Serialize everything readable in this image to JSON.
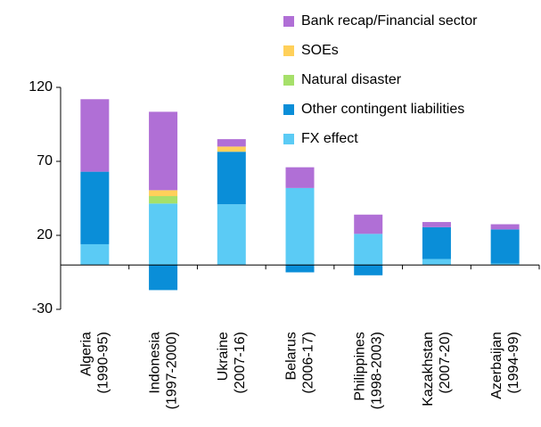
{
  "chart_data": {
    "type": "stacked-bar",
    "categories": [
      [
        "Algeria",
        "(1990-95)"
      ],
      [
        "Indonesia",
        "(1997-2000)"
      ],
      [
        "Ukraine",
        "(2007-16)"
      ],
      [
        "Belarus",
        "(2006-17)"
      ],
      [
        "Philippines",
        "(1998-2003)"
      ],
      [
        "Kazakhstan",
        "(2007-20)"
      ],
      [
        "Azerbaijan",
        "(1994-99)"
      ]
    ],
    "series": [
      {
        "name": "FX effect",
        "color": "#5bcbf5",
        "values": [
          14,
          41.5,
          41,
          52,
          21,
          4,
          1
        ]
      },
      {
        "name": "Other contingent liabilities",
        "color": "#0a8ed8",
        "values": [
          49,
          -17,
          35.5,
          -5,
          -7,
          21.5,
          23
        ]
      },
      {
        "name": "Natural disaster",
        "color": "#a6e06a",
        "values": [
          null,
          5,
          null,
          null,
          null,
          null,
          null
        ]
      },
      {
        "name": "SOEs",
        "color": "#ffd05a",
        "values": [
          null,
          4,
          3.5,
          null,
          null,
          null,
          null
        ]
      },
      {
        "name": "Bank recap/Financial sector",
        "color": "#b06fd6",
        "values": [
          49,
          53,
          5,
          14,
          13,
          3.5,
          3.5
        ]
      }
    ],
    "ylim": [
      -30,
      120
    ],
    "yticks": [
      -30,
      20,
      70,
      120
    ]
  }
}
